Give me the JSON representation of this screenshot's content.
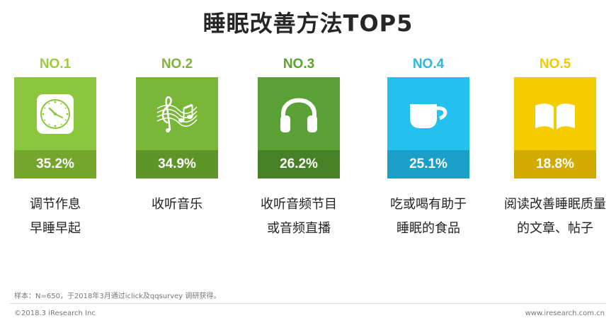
{
  "title": "睡眠改善方法TOP5",
  "chart_data": {
    "type": "bar",
    "title": "睡眠改善方法TOP5",
    "categories": [
      "调节作息早睡早起",
      "收听音乐",
      "收听音频节目或音频直播",
      "吃或喝有助于睡眠的食品",
      "阅读改善睡眠质量的文章、帖子"
    ],
    "values": [
      35.2,
      34.9,
      26.2,
      25.1,
      18.8
    ],
    "unit": "%"
  },
  "items": [
    {
      "rank": "NO.1",
      "value_label": "35.2%",
      "label_lines": [
        "调节作息",
        "早睡早起"
      ],
      "icon": "clock-icon",
      "rank_color": "#9ccc3c",
      "top_color": "#8cc63f",
      "bottom_color": "#74a52d"
    },
    {
      "rank": "NO.2",
      "value_label": "34.9%",
      "label_lines": [
        "收听音乐",
        ""
      ],
      "icon": "music-notes-icon",
      "rank_color": "#7fb33a",
      "top_color": "#7ab638",
      "bottom_color": "#5f9528"
    },
    {
      "rank": "NO.3",
      "value_label": "26.2%",
      "label_lines": [
        "收听音频节目",
        "或音频直播"
      ],
      "icon": "headphones-icon",
      "rank_color": "#5da133",
      "top_color": "#5aa236",
      "bottom_color": "#468128"
    },
    {
      "rank": "NO.4",
      "value_label": "25.1%",
      "label_lines": [
        "吃或喝有助于",
        "睡眠的食品"
      ],
      "icon": "cup-icon",
      "rank_color": "#28b8e0",
      "top_color": "#22c1ee",
      "bottom_color": "#1a9fc9"
    },
    {
      "rank": "NO.5",
      "value_label": "18.8%",
      "label_lines": [
        "阅读改善睡眠质量",
        "的文章、帖子"
      ],
      "icon": "book-icon",
      "rank_color": "#f2cc00",
      "top_color": "#f5cc00",
      "bottom_color": "#d2ab00"
    }
  ],
  "footnote": "样本：N=650，于2018年3月通过iclick及qqsurvey 调研获得。",
  "copyright": "©2018.3 iResearch Inc",
  "website": "www.iresearch.com.cn"
}
